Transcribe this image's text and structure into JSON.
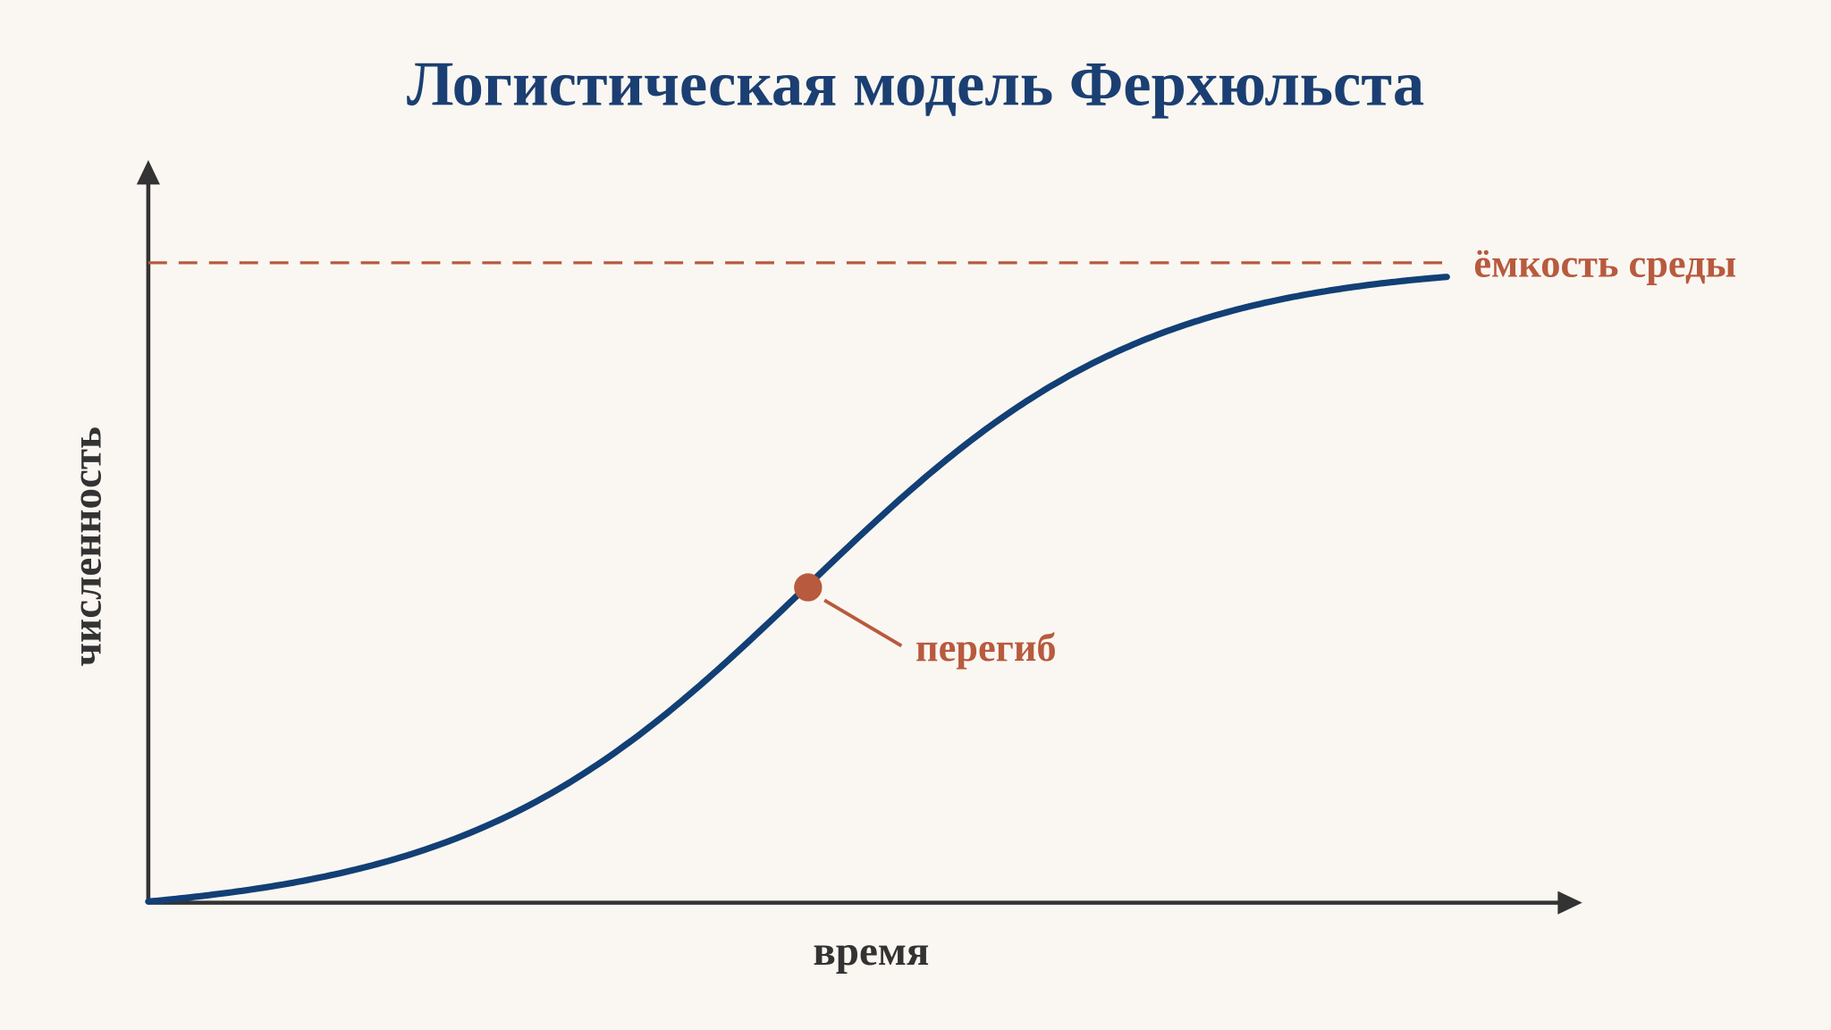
{
  "title": "Логистическая модель Ферхюльста",
  "axes": {
    "x_label": "время",
    "y_label": "численность"
  },
  "annotations": {
    "capacity": "ёмкость среды",
    "inflection": "перегиб"
  }
}
